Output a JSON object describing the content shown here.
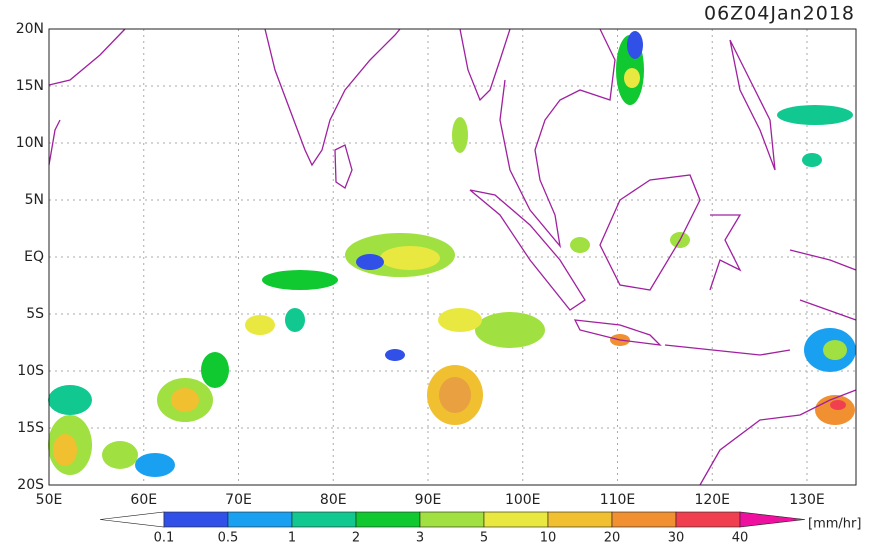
{
  "header": {
    "title": "06Z04Jan2018"
  },
  "map": {
    "lat_labels": [
      "20N",
      "15N",
      "10N",
      "5N",
      "EQ",
      "5S",
      "10S",
      "15S",
      "20S"
    ],
    "lon_labels": [
      "50E",
      "60E",
      "70E",
      "80E",
      "90E",
      "100E",
      "110E",
      "120E",
      "130E"
    ]
  },
  "colorbar": {
    "labels": [
      "0.1",
      "0.5",
      "1",
      "2",
      "3",
      "5",
      "10",
      "20",
      "30",
      "40"
    ],
    "unit": "[mm/hr]"
  }
}
